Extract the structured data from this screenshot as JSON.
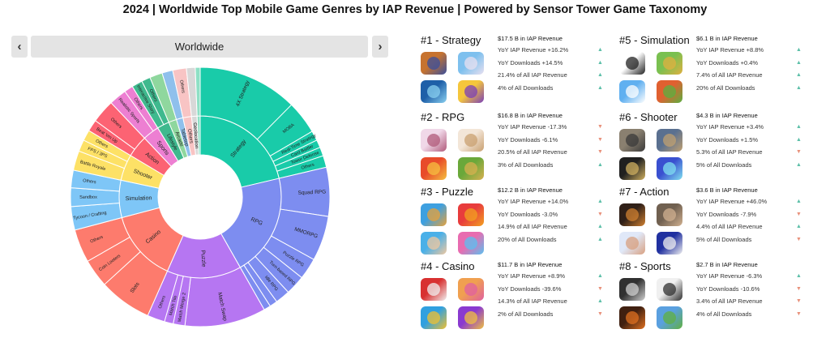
{
  "title": "2024 | Worldwide Top Mobile Game Genres by IAP Revenue | Powered by Sensor Tower Game Taxonomy",
  "region": {
    "selected": "Worldwide",
    "prev_label": "‹",
    "next_label": "›"
  },
  "chart_data": {
    "type": "sunburst",
    "title": "",
    "center_label": "",
    "inner": [
      {
        "label": "Strategy",
        "value": 17.5,
        "color": "#19cba9"
      },
      {
        "label": "RPG",
        "value": 16.8,
        "color": "#7d8df0"
      },
      {
        "label": "Puzzle",
        "value": 12.2,
        "color": "#b676f2"
      },
      {
        "label": "Casino",
        "value": 11.7,
        "color": "#fd7b6d"
      },
      {
        "label": "Simulation",
        "value": 6.1,
        "color": "#7ec6f7"
      },
      {
        "label": "Shooter",
        "value": 4.3,
        "color": "#fde166"
      },
      {
        "label": "Action",
        "value": 3.6,
        "color": "#fc6373"
      },
      {
        "label": "Sports",
        "value": 2.7,
        "color": "#ed7fd2"
      },
      {
        "label": "Lifestyle",
        "value": 2.0,
        "color": "#3fb98e"
      },
      {
        "label": "Arcade",
        "value": 1.3,
        "color": "#8fd79e"
      },
      {
        "label": "Tabletop",
        "value": 1.1,
        "color": "#8fc0ec"
      },
      {
        "label": "Others",
        "value": 1.4,
        "color": "#f8c4c4"
      },
      {
        "label": "Geolocation",
        "value": 0.9,
        "color": "#d8d8d8"
      },
      {
        "label": "",
        "value": 0.5,
        "color": "#8ee0c5"
      }
    ],
    "outer": [
      {
        "label": "4X Strategy",
        "parent": "Strategy",
        "value": 10.2
      },
      {
        "label": "MOBA",
        "parent": "Strategy",
        "value": 3.4
      },
      {
        "label": "Real-Time Strategy",
        "parent": "Strategy",
        "value": 1.0
      },
      {
        "label": "Card Battler",
        "parent": "Strategy",
        "value": 0.8
      },
      {
        "label": "Tower Defense",
        "parent": "Strategy",
        "value": 0.9
      },
      {
        "label": "Others",
        "parent": "Strategy",
        "value": 1.2
      },
      {
        "label": "Squad RPG",
        "parent": "RPG",
        "value": 5.0
      },
      {
        "label": "MMORPG",
        "parent": "RPG",
        "value": 4.6
      },
      {
        "label": "Puzzle RPG",
        "parent": "RPG",
        "value": 2.2
      },
      {
        "label": "Turn-based RPG",
        "parent": "RPG",
        "value": 2.0
      },
      {
        "label": "Idle RPG",
        "parent": "RPG",
        "value": 1.5
      },
      {
        "label": "",
        "parent": "RPG",
        "value": 0.8
      },
      {
        "label": "",
        "parent": "RPG",
        "value": 0.7
      },
      {
        "label": "Match Swap",
        "parent": "Puzzle",
        "value": 8.3
      },
      {
        "label": "Match Merge 2",
        "parent": "Puzzle",
        "value": 1.2
      },
      {
        "label": "Match Tile",
        "parent": "Puzzle",
        "value": 0.9
      },
      {
        "label": "Others",
        "parent": "Puzzle",
        "value": 1.8
      },
      {
        "label": "Slots",
        "parent": "Casino",
        "value": 5.4
      },
      {
        "label": "Coin Looters",
        "parent": "Casino",
        "value": 2.9
      },
      {
        "label": "Others",
        "parent": "Casino",
        "value": 3.4
      },
      {
        "label": "Tycoon / Crafting",
        "parent": "Simulation",
        "value": 2.4
      },
      {
        "label": "Sandbox",
        "parent": "Simulation",
        "value": 1.9
      },
      {
        "label": "Others",
        "parent": "Simulation",
        "value": 1.8
      },
      {
        "label": "Battle Royale",
        "parent": "Shooter",
        "value": 2.0
      },
      {
        "label": "FPS / 3PS",
        "parent": "Shooter",
        "value": 1.2
      },
      {
        "label": "Others",
        "parent": "Shooter",
        "value": 1.1
      },
      {
        "label": "Beat 'em Up",
        "parent": "Action",
        "value": 1.2
      },
      {
        "label": "Others",
        "parent": "Action",
        "value": 2.4
      },
      {
        "label": "Realistic Sports",
        "parent": "Sports",
        "value": 1.8
      },
      {
        "label": "Others",
        "parent": "Sports",
        "value": 0.9
      },
      {
        "label": "Interactive Story",
        "parent": "Lifestyle",
        "value": 1.1
      },
      {
        "label": "Others",
        "parent": "Lifestyle",
        "value": 0.9
      },
      {
        "label": "",
        "parent": "Arcade",
        "value": 1.3
      },
      {
        "label": "",
        "parent": "Tabletop",
        "value": 1.1
      },
      {
        "label": "Others",
        "parent": "Others",
        "value": 1.4
      },
      {
        "label": "",
        "parent": "Geolocation",
        "value": 0.9
      },
      {
        "label": "",
        "parent": "",
        "value": 0.5
      }
    ]
  },
  "genres": [
    {
      "rank_title": "#1 - Strategy",
      "revenue": "$17.5 B in IAP Revenue",
      "metrics": [
        {
          "text": "YoY IAP Revenue +16.2%",
          "dir": "up"
        },
        {
          "text": "YoY Downloads +14.5%",
          "dir": "up"
        },
        {
          "text": "21.4% of All IAP Revenue",
          "dir": "up"
        },
        {
          "text": "4% of All Downloads",
          "dir": "up"
        }
      ],
      "icons": [
        {
          "name": "strategy-game-1-icon",
          "c1": "#c7732f",
          "c2": "#3a4f9c"
        },
        {
          "name": "strategy-game-2-icon",
          "c1": "#7ec0ee",
          "c2": "#e8e0f0"
        },
        {
          "name": "strategy-game-3-icon",
          "c1": "#1e5fa8",
          "c2": "#8ad0f0"
        },
        {
          "name": "strategy-game-4-icon",
          "c1": "#f5c63c",
          "c2": "#7a3fb8"
        }
      ]
    },
    {
      "rank_title": "#2 - RPG",
      "revenue": "$16.8 B in IAP Revenue",
      "metrics": [
        {
          "text": "YoY IAP Revenue -17.3%",
          "dir": "down"
        },
        {
          "text": "YoY Downloads -6.1%",
          "dir": "down"
        },
        {
          "text": "20.5% of All IAP Revenue",
          "dir": "down"
        },
        {
          "text": "3% of All Downloads",
          "dir": "up"
        }
      ],
      "icons": [
        {
          "name": "rpg-game-1-icon",
          "c1": "#f0d8e8",
          "c2": "#b05a7a"
        },
        {
          "name": "rpg-game-2-icon",
          "c1": "#f3e6d8",
          "c2": "#c9a070"
        },
        {
          "name": "rpg-game-3-icon",
          "c1": "#e84b2a",
          "c2": "#f5c040"
        },
        {
          "name": "rpg-game-4-icon",
          "c1": "#6aa83a",
          "c2": "#d8b050"
        }
      ]
    },
    {
      "rank_title": "#3 - Puzzle",
      "revenue": "$12.2 B in IAP Revenue",
      "metrics": [
        {
          "text": "YoY IAP Revenue +14.0%",
          "dir": "up"
        },
        {
          "text": "YoY Downloads -3.0%",
          "dir": "down"
        },
        {
          "text": "14.9% of All IAP Revenue",
          "dir": "up"
        },
        {
          "text": "20% of All Downloads",
          "dir": "up"
        }
      ],
      "icons": [
        {
          "name": "puzzle-game-1-icon",
          "c1": "#3ea0e0",
          "c2": "#e8a23a"
        },
        {
          "name": "puzzle-game-2-icon",
          "c1": "#e83c3c",
          "c2": "#f2a020"
        },
        {
          "name": "puzzle-game-3-icon",
          "c1": "#4ab0e8",
          "c2": "#f0c8a0"
        },
        {
          "name": "puzzle-game-4-icon",
          "c1": "#e86cb0",
          "c2": "#5ac0f0"
        }
      ]
    },
    {
      "rank_title": "#4 - Casino",
      "revenue": "$11.7 B in IAP Revenue",
      "metrics": [
        {
          "text": "YoY IAP Revenue +8.9%",
          "dir": "up"
        },
        {
          "text": "YoY Downloads -39.6%",
          "dir": "down"
        },
        {
          "text": "14.3% of All IAP Revenue",
          "dir": "up"
        },
        {
          "text": "2% of All Downloads",
          "dir": "down"
        }
      ],
      "icons": [
        {
          "name": "casino-game-1-icon",
          "c1": "#d83030",
          "c2": "#f0f0f0"
        },
        {
          "name": "casino-game-2-icon",
          "c1": "#f0a050",
          "c2": "#e060a0"
        },
        {
          "name": "casino-game-3-icon",
          "c1": "#30a0e0",
          "c2": "#f0c030"
        },
        {
          "name": "casino-game-4-icon",
          "c1": "#8a3ad0",
          "c2": "#f0c040"
        }
      ]
    },
    {
      "rank_title": "#5 - Simulation",
      "revenue": "$6.1 B in IAP Revenue",
      "metrics": [
        {
          "text": "YoY IAP Revenue +8.8%",
          "dir": "up"
        },
        {
          "text": "YoY Downloads +0.4%",
          "dir": "up"
        },
        {
          "text": "7.4% of All IAP Revenue",
          "dir": "up"
        },
        {
          "text": "20% of All Downloads",
          "dir": "up"
        }
      ],
      "icons": [
        {
          "name": "simulation-game-1-icon",
          "c1": "#ffffff",
          "c2": "#222222"
        },
        {
          "name": "simulation-game-2-icon",
          "c1": "#7ac050",
          "c2": "#e0b040"
        },
        {
          "name": "simulation-game-3-icon",
          "c1": "#60b0f0",
          "c2": "#ffffff"
        },
        {
          "name": "simulation-game-4-icon",
          "c1": "#e06030",
          "c2": "#5ab040"
        }
      ]
    },
    {
      "rank_title": "#6 - Shooter",
      "revenue": "$4.3 B in IAP Revenue",
      "metrics": [
        {
          "text": "YoY IAP Revenue +3.4%",
          "dir": "up"
        },
        {
          "text": "YoY Downloads +1.5%",
          "dir": "up"
        },
        {
          "text": "5.3% of All IAP Revenue",
          "dir": "down"
        },
        {
          "text": "5% of All Downloads",
          "dir": "up"
        }
      ],
      "icons": [
        {
          "name": "shooter-game-1-icon",
          "c1": "#8a8070",
          "c2": "#3a3a3a"
        },
        {
          "name": "shooter-game-2-icon",
          "c1": "#5a7090",
          "c2": "#c0a070"
        },
        {
          "name": "shooter-game-3-icon",
          "c1": "#202020",
          "c2": "#d0b060"
        },
        {
          "name": "shooter-game-4-icon",
          "c1": "#3a50d0",
          "c2": "#80e0f0"
        }
      ]
    },
    {
      "rank_title": "#7 - Action",
      "revenue": "$3.6 B in IAP Revenue",
      "metrics": [
        {
          "text": "YoY IAP Revenue +46.0%",
          "dir": "up"
        },
        {
          "text": "YoY Downloads -7.9%",
          "dir": "down"
        },
        {
          "text": "4.4% of All IAP Revenue",
          "dir": "up"
        },
        {
          "text": "5% of All Downloads",
          "dir": "down"
        }
      ],
      "icons": [
        {
          "name": "action-game-1-icon",
          "c1": "#302018",
          "c2": "#d08030"
        },
        {
          "name": "action-game-2-icon",
          "c1": "#706050",
          "c2": "#d0b090"
        },
        {
          "name": "action-game-3-icon",
          "c1": "#e0e8f8",
          "c2": "#d8a080"
        },
        {
          "name": "action-game-4-icon",
          "c1": "#2030a0",
          "c2": "#f0f0f0"
        }
      ]
    },
    {
      "rank_title": "#8 - Sports",
      "revenue": "$2.7 B in IAP Revenue",
      "metrics": [
        {
          "text": "YoY IAP Revenue -6.3%",
          "dir": "up"
        },
        {
          "text": "YoY Downloads -10.6%",
          "dir": "down"
        },
        {
          "text": "3.4% of All IAP Revenue",
          "dir": "down"
        },
        {
          "text": "4% of All Downloads",
          "dir": "down"
        }
      ],
      "icons": [
        {
          "name": "sports-game-1-icon",
          "c1": "#303030",
          "c2": "#d0d0d0"
        },
        {
          "name": "sports-game-2-icon",
          "c1": "#f0f0f0",
          "c2": "#303030"
        },
        {
          "name": "sports-game-3-icon",
          "c1": "#402010",
          "c2": "#e07020"
        },
        {
          "name": "sports-game-4-icon",
          "c1": "#5aa0e0",
          "c2": "#60b040"
        }
      ]
    }
  ]
}
